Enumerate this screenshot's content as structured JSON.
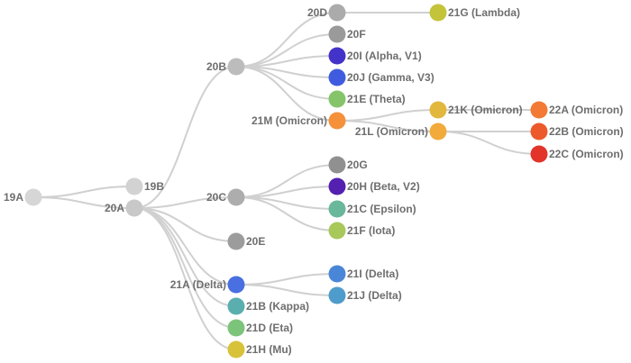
{
  "nodes": [
    {
      "id": "19A",
      "label": "19A",
      "parent": null,
      "color": "#d6d6d6"
    },
    {
      "id": "19B",
      "label": "19B",
      "parent": "19A",
      "color": "#d2d2d2"
    },
    {
      "id": "20A",
      "label": "20A",
      "parent": "19A",
      "color": "#c8c8c8"
    },
    {
      "id": "20B",
      "label": "20B",
      "parent": "20A",
      "color": "#bcbcbc"
    },
    {
      "id": "20C",
      "label": "20C",
      "parent": "20A",
      "color": "#adadad"
    },
    {
      "id": "20E",
      "label": "20E",
      "parent": "20A",
      "color": "#9c9c9c"
    },
    {
      "id": "21A",
      "label": "21A (Delta)",
      "parent": "20A",
      "color": "#4a6fe0"
    },
    {
      "id": "21B",
      "label": "21B (Kappa)",
      "parent": "20A",
      "color": "#5aaeae"
    },
    {
      "id": "21D",
      "label": "21D (Eta)",
      "parent": "20A",
      "color": "#7cc47a"
    },
    {
      "id": "21H",
      "label": "21H (Mu)",
      "parent": "20A",
      "color": "#d8c23a"
    },
    {
      "id": "20D",
      "label": "20D",
      "parent": "20B",
      "color": "#ababab"
    },
    {
      "id": "20F",
      "label": "20F",
      "parent": "20B",
      "color": "#9a9a9a"
    },
    {
      "id": "20I",
      "label": "20I (Alpha, V1)",
      "parent": "20B",
      "color": "#4433c8"
    },
    {
      "id": "20J",
      "label": "20J (Gamma, V3)",
      "parent": "20B",
      "color": "#3f5ce0"
    },
    {
      "id": "21E",
      "label": "21E (Theta)",
      "parent": "20B",
      "color": "#86c46a"
    },
    {
      "id": "21M",
      "label": "21M (Omicron)",
      "parent": "20B",
      "color": "#f4913a"
    },
    {
      "id": "21G",
      "label": "21G (Lambda)",
      "parent": "20D",
      "color": "#c4c43a"
    },
    {
      "id": "21K",
      "label": "21K (Omicron)",
      "parent": "21M",
      "color": "#e2b73e"
    },
    {
      "id": "21L",
      "label": "21L (Omicron)",
      "parent": "21M",
      "color": "#f2aa3a"
    },
    {
      "id": "22A",
      "label": "22A (Omicron)",
      "parent": "21K",
      "color": "#f27a34"
    },
    {
      "id": "22B",
      "label": "22B (Omicron)",
      "parent": "21L",
      "color": "#ec5a2c"
    },
    {
      "id": "22C",
      "label": "22C (Omicron)",
      "parent": "21L",
      "color": "#e2342a"
    },
    {
      "id": "20G",
      "label": "20G",
      "parent": "20C",
      "color": "#909090"
    },
    {
      "id": "20H",
      "label": "20H (Beta, V2)",
      "parent": "20C",
      "color": "#5420b0"
    },
    {
      "id": "21C",
      "label": "21C (Epsilon)",
      "parent": "20C",
      "color": "#6ab89c"
    },
    {
      "id": "21F",
      "label": "21F (Iota)",
      "parent": "20C",
      "color": "#a8c85a"
    },
    {
      "id": "21I",
      "label": "21I (Delta)",
      "parent": "21A",
      "color": "#4a86d8"
    },
    {
      "id": "21J",
      "label": "21J (Delta)",
      "parent": "21A",
      "color": "#4e9ccc"
    }
  ],
  "edge_color": "#d0d0d0"
}
